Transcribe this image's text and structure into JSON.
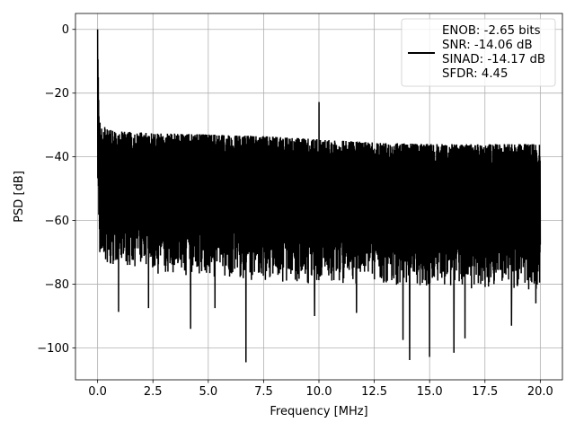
{
  "chart_data": {
    "type": "line",
    "xlabel": "Frequency [MHz]",
    "ylabel": "PSD [dB]",
    "xlim": [
      -1.0,
      21.0
    ],
    "ylim": [
      -110.0,
      5.0
    ],
    "grid": true,
    "legend_position": "top-right",
    "x_ticks": [
      0.0,
      2.5,
      5.0,
      7.5,
      10.0,
      12.5,
      15.0,
      17.5,
      20.0
    ],
    "x_tick_labels": [
      "0.0",
      "2.5",
      "5.0",
      "7.5",
      "10.0",
      "12.5",
      "15.0",
      "17.5",
      "20.0"
    ],
    "y_ticks": [
      0,
      -20,
      -40,
      -60,
      -80,
      -100
    ],
    "y_tick_labels": [
      "0",
      "−20",
      "−40",
      "−60",
      "−80",
      "−100"
    ],
    "series": [
      {
        "color": "#000000",
        "line_width": 1.5,
        "legend_lines": [
          "ENOB: -2.65 bits",
          "SNR: -14.06 dB",
          "SINAD: -14.17 dB",
          "SFDR: 4.45"
        ],
        "envelope": {
          "x": [
            0.0,
            0.05,
            0.1,
            0.2,
            0.5,
            1.0,
            2.5,
            5.0,
            7.5,
            10.0,
            12.5,
            15.0,
            17.5,
            20.0
          ],
          "upper": [
            0.0,
            -22.0,
            -28.0,
            -30.0,
            -31.5,
            -32.0,
            -32.5,
            -33.0,
            -33.5,
            -34.5,
            -35.5,
            -36.0,
            -36.0,
            -36.0
          ],
          "lower": [
            -55.0,
            -68.0,
            -71.0,
            -73.0,
            -75.0,
            -76.0,
            -77.0,
            -78.0,
            -79.0,
            -80.0,
            -81.0,
            -81.5,
            -82.0,
            -82.0
          ]
        },
        "peaks": [
          {
            "x": 0.0,
            "y": 0.0
          },
          {
            "x": 10.0,
            "y": -22.8
          }
        ],
        "dips": [
          {
            "x": 0.95,
            "y": -88.7
          },
          {
            "x": 2.3,
            "y": -87.5
          },
          {
            "x": 4.2,
            "y": -94.0
          },
          {
            "x": 5.3,
            "y": -87.5
          },
          {
            "x": 6.7,
            "y": -104.5
          },
          {
            "x": 9.8,
            "y": -90.0
          },
          {
            "x": 11.7,
            "y": -89.0
          },
          {
            "x": 13.8,
            "y": -97.5
          },
          {
            "x": 14.1,
            "y": -103.8
          },
          {
            "x": 15.0,
            "y": -102.8
          },
          {
            "x": 16.1,
            "y": -101.5
          },
          {
            "x": 16.6,
            "y": -97.0
          },
          {
            "x": 18.7,
            "y": -93.0
          },
          {
            "x": 19.8,
            "y": -86.0
          }
        ]
      }
    ]
  }
}
